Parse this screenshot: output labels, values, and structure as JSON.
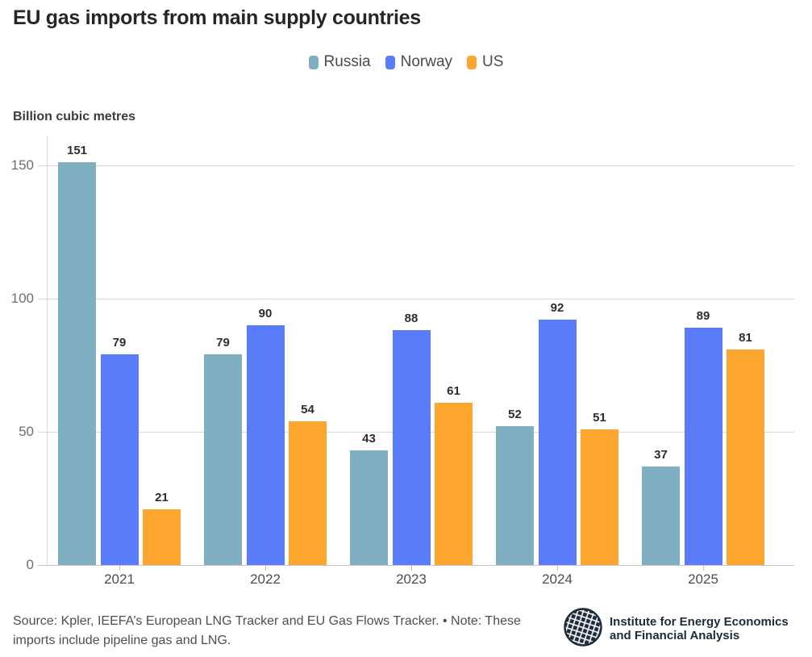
{
  "header": {
    "title": "EU gas imports from main supply countries"
  },
  "chart_data": {
    "type": "bar",
    "title": "EU gas imports from main supply countries",
    "ylabel": "Billion cubic metres",
    "xlabel": "",
    "categories": [
      "2021",
      "2022",
      "2023",
      "2024",
      "2025"
    ],
    "series": [
      {
        "name": "Russia",
        "color": "#7FAFC0",
        "values": [
          151,
          79,
          43,
          52,
          37
        ]
      },
      {
        "name": "Norway",
        "color": "#5A7CF8",
        "values": [
          79,
          90,
          88,
          92,
          89
        ]
      },
      {
        "name": "US",
        "color": "#FCA52F",
        "values": [
          21,
          54,
          61,
          51,
          81
        ]
      }
    ],
    "ylim": [
      0,
      150
    ],
    "yticks": [
      0,
      50,
      100,
      150
    ],
    "grid": true,
    "value_labels": true,
    "legend_position": "top-center"
  },
  "footer": {
    "source_line1": "Source: Kpler, IEEFA’s European LNG Tracker and EU Gas Flows Tracker. • Note: These",
    "source_line2": "imports include pipeline gas and LNG.",
    "logo": {
      "icon": "globe-icon",
      "line1": "Institute for Energy Economics",
      "line2": "and Financial Analysis"
    }
  }
}
